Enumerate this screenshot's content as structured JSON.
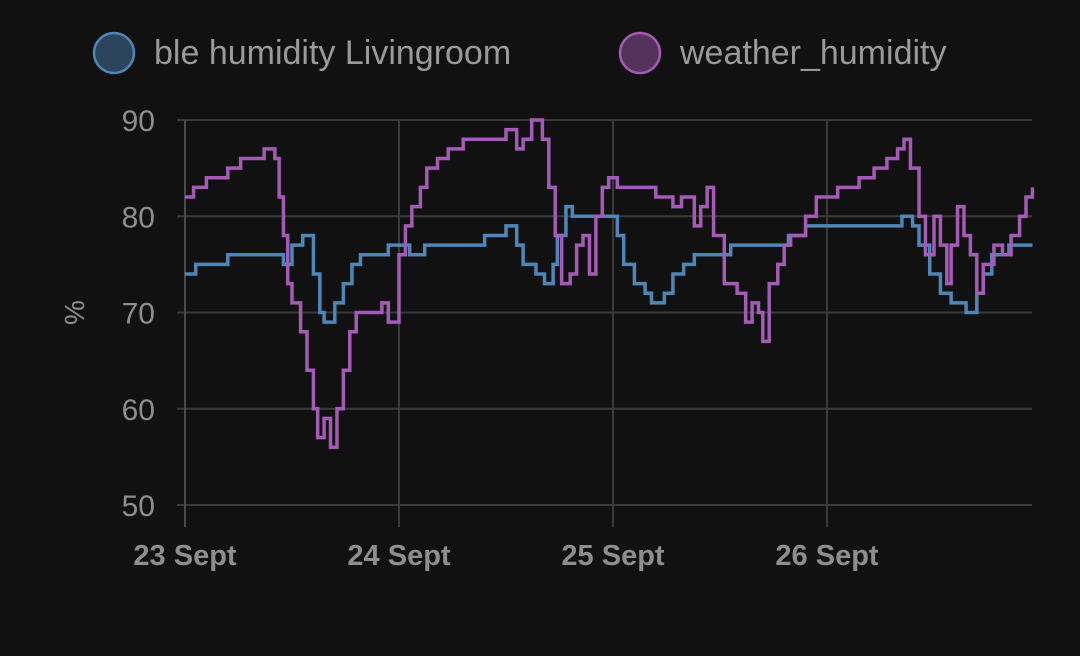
{
  "chart_data": {
    "type": "line",
    "title": "",
    "xlabel": "",
    "ylabel": "%",
    "ylim": [
      50,
      90
    ],
    "yticks": [
      50,
      60,
      70,
      80,
      90
    ],
    "xlim": [
      0,
      3.96
    ],
    "xticks": [
      {
        "value": 0,
        "label": "23 Sept"
      },
      {
        "value": 1,
        "label": "24 Sept"
      },
      {
        "value": 2,
        "label": "25 Sept"
      },
      {
        "value": 3,
        "label": "26 Sept"
      }
    ],
    "x_unit": "days from 23 Sept",
    "grid": true,
    "step": true,
    "legend_position": "top",
    "series": [
      {
        "name": "ble humidity Livingroom",
        "color": "#4f86b8",
        "points": [
          [
            0.0,
            74
          ],
          [
            0.05,
            75
          ],
          [
            0.2,
            76
          ],
          [
            0.46,
            75
          ],
          [
            0.5,
            77
          ],
          [
            0.55,
            78
          ],
          [
            0.6,
            74
          ],
          [
            0.63,
            70
          ],
          [
            0.65,
            69
          ],
          [
            0.7,
            71
          ],
          [
            0.74,
            73
          ],
          [
            0.78,
            75
          ],
          [
            0.82,
            76
          ],
          [
            0.95,
            77
          ],
          [
            1.05,
            76
          ],
          [
            1.12,
            77
          ],
          [
            1.4,
            78
          ],
          [
            1.5,
            79
          ],
          [
            1.55,
            77
          ],
          [
            1.58,
            75
          ],
          [
            1.64,
            74
          ],
          [
            1.68,
            73
          ],
          [
            1.72,
            75
          ],
          [
            1.74,
            78
          ],
          [
            1.78,
            81
          ],
          [
            1.81,
            80
          ],
          [
            1.97,
            80
          ],
          [
            2.02,
            78
          ],
          [
            2.05,
            75
          ],
          [
            2.1,
            73
          ],
          [
            2.15,
            72
          ],
          [
            2.18,
            71
          ],
          [
            2.24,
            72
          ],
          [
            2.28,
            74
          ],
          [
            2.33,
            75
          ],
          [
            2.38,
            76
          ],
          [
            2.55,
            77
          ],
          [
            2.82,
            78
          ],
          [
            2.9,
            79
          ],
          [
            3.35,
            80
          ],
          [
            3.4,
            79
          ],
          [
            3.43,
            77
          ],
          [
            3.48,
            74
          ],
          [
            3.53,
            72
          ],
          [
            3.58,
            71
          ],
          [
            3.65,
            70
          ],
          [
            3.7,
            72
          ],
          [
            3.73,
            74
          ],
          [
            3.77,
            76
          ],
          [
            3.85,
            77
          ],
          [
            3.96,
            77
          ]
        ]
      },
      {
        "name": "weather_humidity",
        "color": "#a45bb5",
        "points": [
          [
            0.0,
            82
          ],
          [
            0.04,
            83
          ],
          [
            0.1,
            84
          ],
          [
            0.2,
            85
          ],
          [
            0.26,
            86
          ],
          [
            0.37,
            87
          ],
          [
            0.42,
            86
          ],
          [
            0.44,
            82
          ],
          [
            0.46,
            78
          ],
          [
            0.48,
            73
          ],
          [
            0.5,
            71
          ],
          [
            0.54,
            68
          ],
          [
            0.57,
            64
          ],
          [
            0.6,
            60
          ],
          [
            0.62,
            57
          ],
          [
            0.65,
            59
          ],
          [
            0.68,
            56
          ],
          [
            0.71,
            60
          ],
          [
            0.74,
            64
          ],
          [
            0.77,
            68
          ],
          [
            0.8,
            70
          ],
          [
            0.92,
            71
          ],
          [
            0.95,
            69
          ],
          [
            1.0,
            76
          ],
          [
            1.03,
            79
          ],
          [
            1.06,
            81
          ],
          [
            1.1,
            83
          ],
          [
            1.13,
            85
          ],
          [
            1.18,
            86
          ],
          [
            1.23,
            87
          ],
          [
            1.3,
            88
          ],
          [
            1.5,
            89
          ],
          [
            1.55,
            87
          ],
          [
            1.58,
            88
          ],
          [
            1.62,
            90
          ],
          [
            1.67,
            88
          ],
          [
            1.7,
            83
          ],
          [
            1.73,
            78
          ],
          [
            1.76,
            73
          ],
          [
            1.8,
            74
          ],
          [
            1.83,
            77
          ],
          [
            1.86,
            78
          ],
          [
            1.89,
            74
          ],
          [
            1.92,
            80
          ],
          [
            1.95,
            83
          ],
          [
            1.98,
            84
          ],
          [
            2.02,
            83
          ],
          [
            2.2,
            82
          ],
          [
            2.28,
            81
          ],
          [
            2.32,
            82
          ],
          [
            2.38,
            79
          ],
          [
            2.41,
            81
          ],
          [
            2.44,
            83
          ],
          [
            2.47,
            78
          ],
          [
            2.52,
            73
          ],
          [
            2.58,
            72
          ],
          [
            2.62,
            69
          ],
          [
            2.65,
            71
          ],
          [
            2.68,
            70
          ],
          [
            2.7,
            67
          ],
          [
            2.73,
            73
          ],
          [
            2.77,
            75
          ],
          [
            2.8,
            77
          ],
          [
            2.83,
            78
          ],
          [
            2.9,
            80
          ],
          [
            2.95,
            82
          ],
          [
            3.05,
            83
          ],
          [
            3.15,
            84
          ],
          [
            3.22,
            85
          ],
          [
            3.28,
            86
          ],
          [
            3.33,
            87
          ],
          [
            3.36,
            88
          ],
          [
            3.39,
            85
          ],
          [
            3.43,
            80
          ],
          [
            3.46,
            76
          ],
          [
            3.5,
            80
          ],
          [
            3.53,
            77
          ],
          [
            3.56,
            73
          ],
          [
            3.58,
            77
          ],
          [
            3.61,
            81
          ],
          [
            3.64,
            78
          ],
          [
            3.67,
            76
          ],
          [
            3.7,
            72
          ],
          [
            3.73,
            75
          ],
          [
            3.78,
            77
          ],
          [
            3.82,
            76
          ],
          [
            3.86,
            78
          ],
          [
            3.9,
            80
          ],
          [
            3.93,
            82
          ],
          [
            3.96,
            83
          ]
        ]
      }
    ]
  }
}
